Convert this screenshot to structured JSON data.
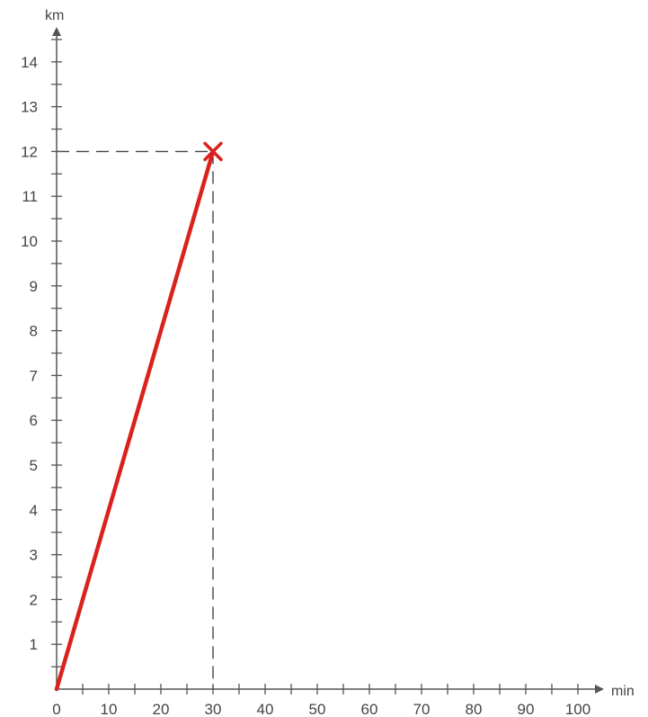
{
  "chart_data": {
    "type": "line",
    "title": "",
    "xlabel": "min",
    "ylabel": "km",
    "xlim": [
      0,
      105
    ],
    "ylim": [
      0,
      15
    ],
    "x_ticks": [
      0,
      10,
      20,
      30,
      40,
      50,
      60,
      70,
      80,
      90,
      100
    ],
    "y_ticks": [
      1,
      2,
      3,
      4,
      5,
      6,
      7,
      8,
      9,
      10,
      11,
      12,
      13,
      14
    ],
    "grid": false,
    "series": [
      {
        "x": [
          0,
          30
        ],
        "y": [
          0,
          12
        ],
        "color": "#d9221e"
      }
    ],
    "highlight_point": {
      "x": 30,
      "y": 12,
      "marker": "x",
      "guides": "dashed"
    },
    "colors": {
      "axis": "#555555",
      "label": "#444444",
      "series": "#d9221e"
    }
  }
}
